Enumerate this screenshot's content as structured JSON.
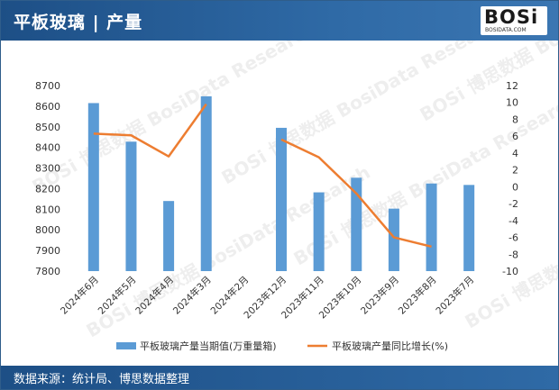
{
  "header": {
    "title": "平板玻璃 | 产量"
  },
  "logo": {
    "brand": "BOSi",
    "site": "BOSIDATA.COM"
  },
  "footer": {
    "source": "数据来源：统计局、博思数据整理"
  },
  "watermark": {
    "text": "BOSi 博思数据 BosiData Research"
  },
  "colors": {
    "bar": "#5b9bd5",
    "line": "#ed7d31",
    "header": "#1d4f86"
  },
  "chart_data": {
    "type": "bar",
    "categories": [
      "2024年6月",
      "2024年5月",
      "2024年4月",
      "2024年3月",
      "2024年2月",
      "2023年12月",
      "2023年11月",
      "2023年10月",
      "2023年9月",
      "2023年8月",
      "2023年7月"
    ],
    "series": [
      {
        "name": "平板玻璃产量当期值(万重量箱)",
        "type": "bar",
        "axis": "left",
        "values": [
          8615,
          8428,
          8140,
          8648,
          null,
          8495,
          8182,
          8253,
          8103,
          8225,
          8218
        ]
      },
      {
        "name": "平板玻璃产量同比增长(%)",
        "type": "line",
        "axis": "right",
        "values": [
          6.3,
          6.1,
          3.6,
          9.8,
          null,
          5.6,
          3.5,
          -0.8,
          -6.0,
          -7.1,
          null
        ]
      }
    ],
    "ylim": [
      7800,
      8700
    ],
    "yticks": [
      "8700",
      "8600",
      "8500",
      "8400",
      "8300",
      "8200",
      "8100",
      "8000",
      "7900",
      "7800"
    ],
    "y2lim": [
      -10,
      12
    ],
    "y2ticks": [
      "12",
      "10",
      "8",
      "6",
      "4",
      "2",
      "0",
      "-2",
      "-4",
      "-6",
      "-8",
      "-10"
    ],
    "legend_position": "bottom"
  }
}
